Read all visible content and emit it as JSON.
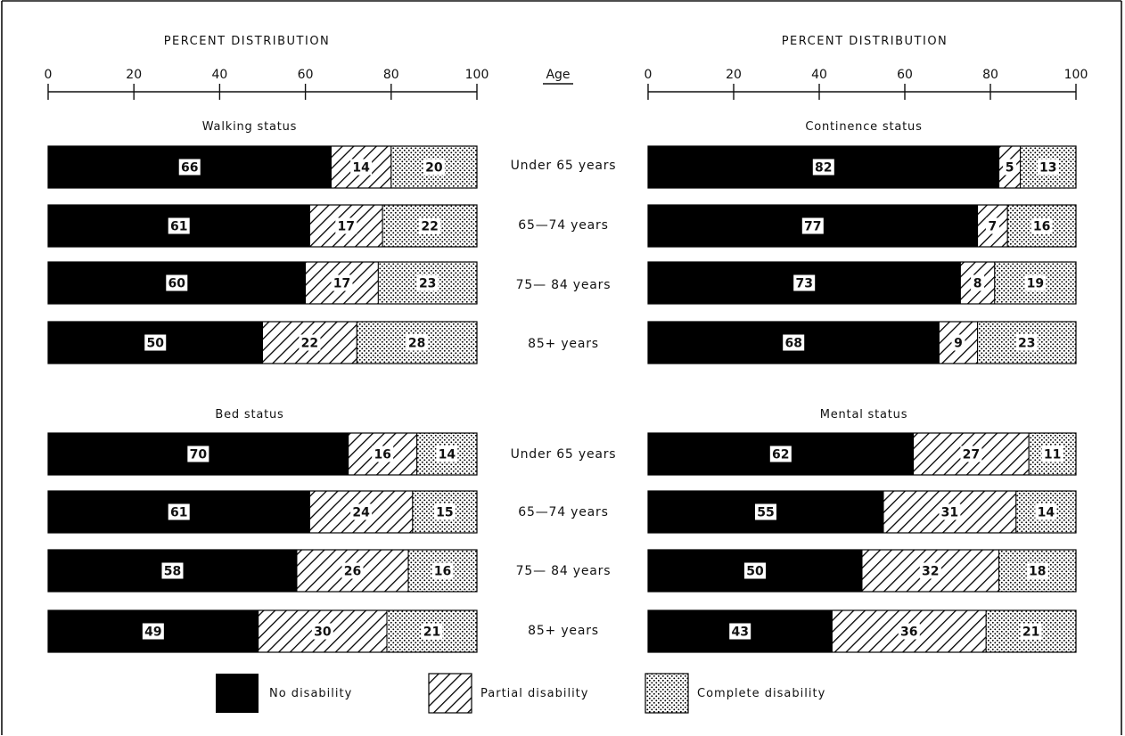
{
  "chart_data": [
    {
      "type": "bar",
      "orientation": "horizontal",
      "stacked": true,
      "title": "Walking status",
      "xlabel": "PERCENT DISTRIBUTION",
      "xlim": [
        0,
        100
      ],
      "xticks": [
        "0",
        "20",
        "40",
        "60",
        "80",
        "100"
      ],
      "categories": [
        "Under 65 years",
        "65—74 years",
        "75— 84 years",
        "85+ years"
      ],
      "series": [
        {
          "name": "No disability",
          "values": [
            66,
            61,
            60,
            50
          ]
        },
        {
          "name": "Partial disability",
          "values": [
            14,
            17,
            17,
            22
          ]
        },
        {
          "name": "Complete disability",
          "values": [
            20,
            22,
            23,
            28
          ]
        }
      ]
    },
    {
      "type": "bar",
      "orientation": "horizontal",
      "stacked": true,
      "title": "Continence status",
      "xlabel": "PERCENT DISTRIBUTION",
      "xlim": [
        0,
        100
      ],
      "xticks": [
        "0",
        "20",
        "40",
        "60",
        "80",
        "100"
      ],
      "categories": [
        "Under 65 years",
        "65—74 years",
        "75— 84 years",
        "85+ years"
      ],
      "series": [
        {
          "name": "No disability",
          "values": [
            82,
            77,
            73,
            68
          ]
        },
        {
          "name": "Partial disability",
          "values": [
            5,
            7,
            8,
            9
          ]
        },
        {
          "name": "Complete disability",
          "values": [
            13,
            16,
            19,
            23
          ]
        }
      ]
    },
    {
      "type": "bar",
      "orientation": "horizontal",
      "stacked": true,
      "title": "Bed status",
      "xlim": [
        0,
        100
      ],
      "categories": [
        "Under 65 years",
        "65—74 years",
        "75— 84 years",
        "85+ years"
      ],
      "series": [
        {
          "name": "No disability",
          "values": [
            70,
            61,
            58,
            49
          ]
        },
        {
          "name": "Partial disability",
          "values": [
            16,
            24,
            26,
            30
          ]
        },
        {
          "name": "Complete disability",
          "values": [
            14,
            15,
            16,
            21
          ]
        }
      ]
    },
    {
      "type": "bar",
      "orientation": "horizontal",
      "stacked": true,
      "title": "Mental status",
      "xlim": [
        0,
        100
      ],
      "categories": [
        "Under 65 years",
        "65—74 years",
        "75— 84 years",
        "85+ years"
      ],
      "series": [
        {
          "name": "No disability",
          "values": [
            62,
            55,
            50,
            43
          ]
        },
        {
          "name": "Partial disability",
          "values": [
            27,
            31,
            32,
            36
          ]
        },
        {
          "name": "Complete disability",
          "values": [
            11,
            14,
            18,
            21
          ]
        }
      ]
    }
  ],
  "age_header": "Age",
  "age_labels": {
    "top": [
      "Under 65 years",
      "65—74 years",
      "75— 84 years",
      "85+ years"
    ],
    "bottom": [
      "Under 65 years",
      "65—74 years",
      "75— 84 years",
      "85+ years"
    ]
  },
  "legend": [
    {
      "name": "No disability",
      "pattern": "solid",
      "color": "#000000"
    },
    {
      "name": "Partial disability",
      "pattern": "hatch"
    },
    {
      "name": "Complete disability",
      "pattern": "dots"
    }
  ]
}
